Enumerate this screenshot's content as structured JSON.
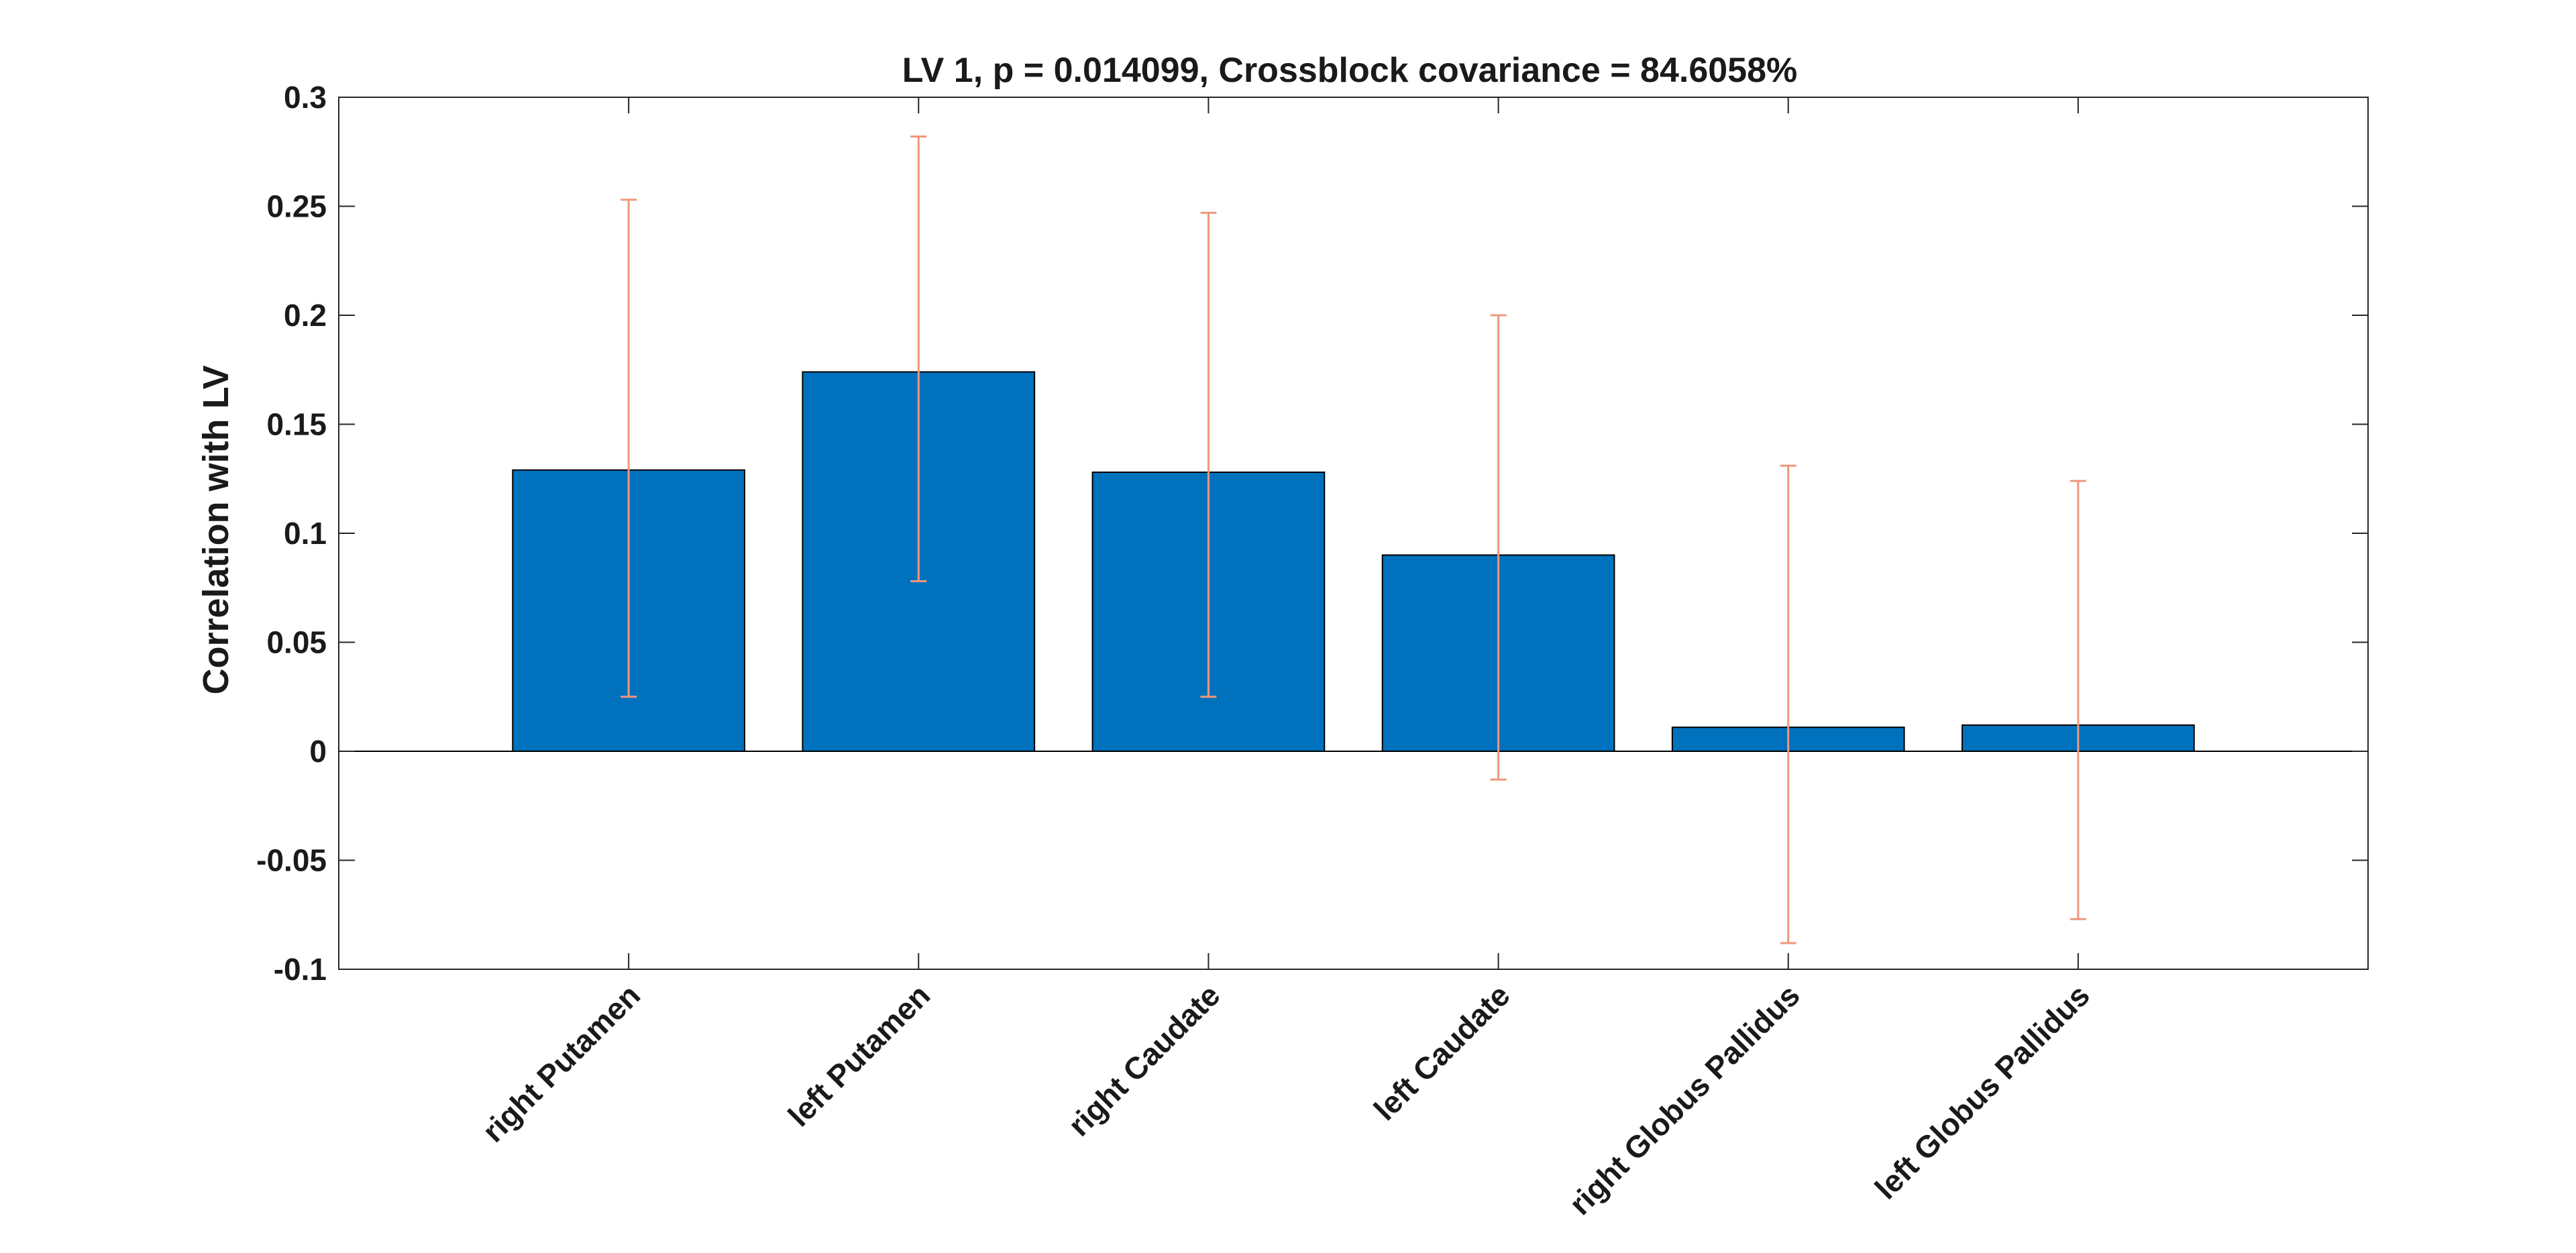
{
  "chart_data": {
    "type": "bar",
    "title": "LV 1, p = 0.014099, Crossblock covariance = 84.6058%",
    "xlabel": "",
    "ylabel": "Correlation with LV",
    "ylim": [
      -0.1,
      0.3
    ],
    "yticks": [
      -0.1,
      -0.05,
      0,
      0.05,
      0.1,
      0.15,
      0.2,
      0.25,
      0.3
    ],
    "ytick_labels": [
      "-0.1",
      "-0.05",
      "0",
      "0.05",
      "0.1",
      "0.15",
      "0.2",
      "0.25",
      "0.3"
    ],
    "xlim": [
      0,
      7
    ],
    "categories": [
      "right Putamen",
      "left Putamen",
      "right Caudate",
      "left Caudate",
      "right Globus Pallidus",
      "left Globus Pallidus"
    ],
    "values": [
      0.129,
      0.174,
      0.128,
      0.09,
      0.011,
      0.012
    ],
    "error_bars": {
      "lower": [
        0.025,
        0.078,
        0.025,
        -0.013,
        -0.088,
        -0.077
      ],
      "upper": [
        0.253,
        0.282,
        0.247,
        0.2,
        0.131,
        0.124
      ]
    },
    "grid": false,
    "legend": "none",
    "colors": {
      "bar_fill": "#0072BD",
      "bar_edge": "#000000",
      "error_bar": "#F0977B",
      "axis": "#262626",
      "zero_line": "#000000"
    }
  }
}
